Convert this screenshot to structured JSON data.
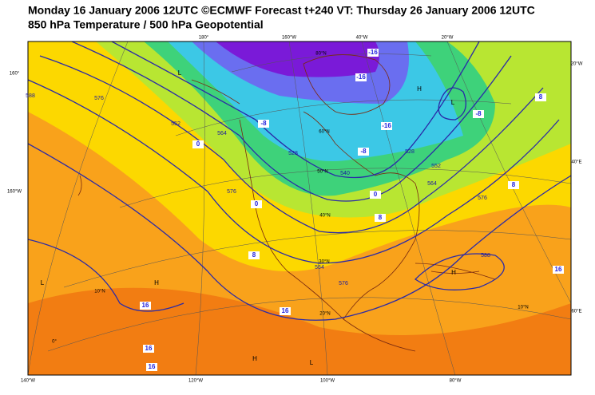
{
  "header": {
    "title": "Monday 16 January 2006 12UTC ©ECMWF Forecast t+240 VT: Thursday 26 January 2006 12UTC",
    "subtitle": "850 hPa Temperature / 500 hPa Geopotential"
  },
  "map": {
    "graticule_labels": [
      "180°",
      "160°W",
      "40°W",
      "20°W",
      "160°",
      "160°W",
      "20°W",
      "40°E",
      "60°E",
      "140°W",
      "120°W",
      "100°W",
      "80°W",
      "80°N",
      "60°N",
      "50°N",
      "40°N",
      "30°N",
      "20°N",
      "10°N",
      "0°",
      "10°N"
    ],
    "geopotential_labels": [
      "588",
      "576",
      "552",
      "564",
      "528",
      "576",
      "540",
      "528",
      "552",
      "564",
      "576",
      "588",
      "564",
      "576"
    ],
    "temperature_labels": [
      "-16",
      "-16",
      "-16",
      "-8",
      "-8",
      "-8",
      "0",
      "0",
      "0",
      "8",
      "8",
      "8",
      "8",
      "16",
      "16",
      "16",
      "16",
      "16"
    ],
    "pressure_centers": [
      "H",
      "L",
      "H",
      "H",
      "L",
      "L",
      "H",
      "L"
    ]
  }
}
